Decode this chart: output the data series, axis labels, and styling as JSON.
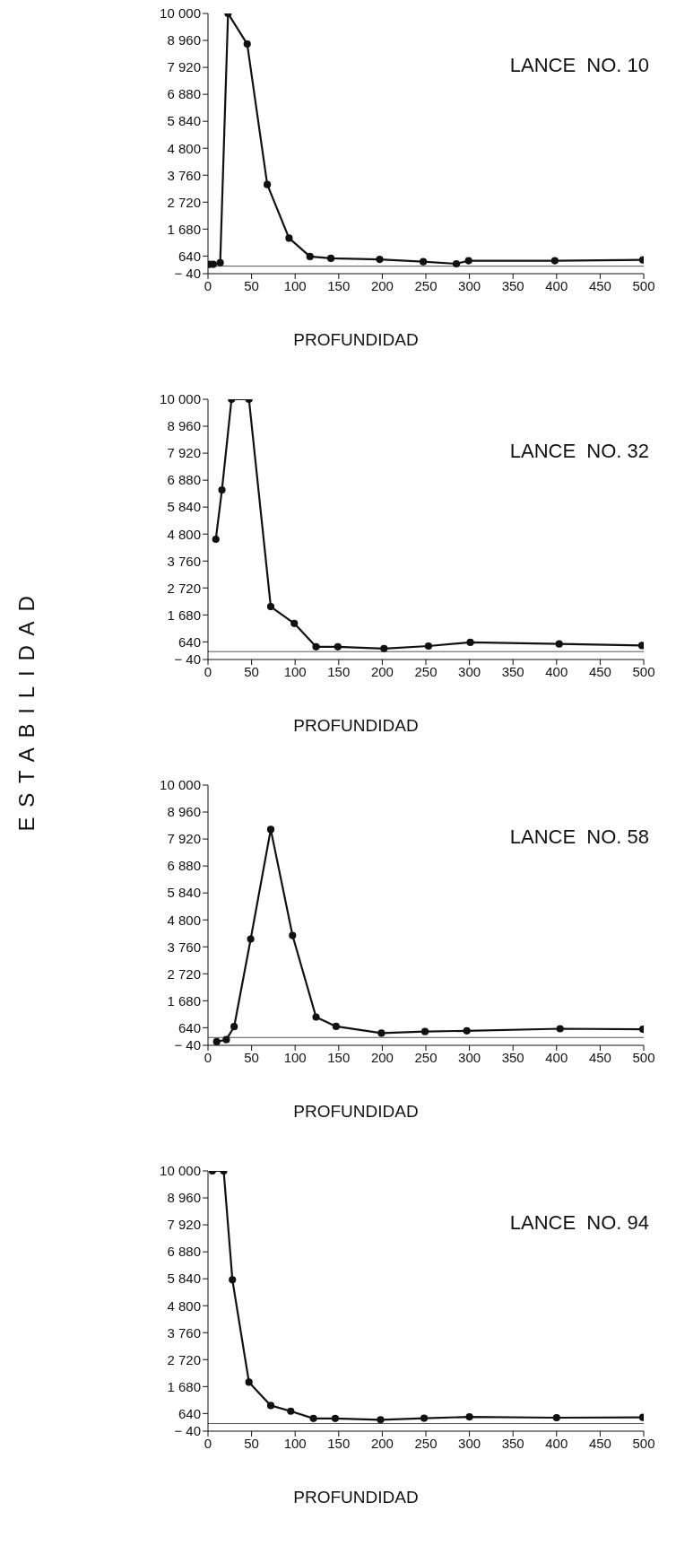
{
  "chart_data": [
    {
      "type": "line",
      "title": "LANCE  NO. 10",
      "xlabel": "PROFUNDIDAD",
      "color": "#111111",
      "marker": "circle",
      "xlim": [
        0,
        500
      ],
      "xticks": [
        0,
        50,
        100,
        150,
        200,
        250,
        300,
        350,
        400,
        450,
        500
      ],
      "ylim": [
        -40,
        10000
      ],
      "yticks": [
        {
          "value": -40,
          "label": "− 40"
        },
        {
          "value": 640,
          "label": "640"
        },
        {
          "value": 1680,
          "label": "1 680"
        },
        {
          "value": 2720,
          "label": "2 720"
        },
        {
          "value": 3760,
          "label": "3 760"
        },
        {
          "value": 4800,
          "label": "4 800"
        },
        {
          "value": 5840,
          "label": "5 840"
        },
        {
          "value": 6880,
          "label": "6 880"
        },
        {
          "value": 7920,
          "label": "7 920"
        },
        {
          "value": 8960,
          "label": "8 960"
        },
        {
          "value": 10000,
          "label": "10 000"
        }
      ],
      "x": [
        2,
        6,
        14,
        23,
        45,
        68,
        93,
        117,
        141,
        197,
        247,
        285,
        299,
        398,
        499
      ],
      "values": [
        320,
        320,
        380,
        10000,
        8820,
        3400,
        1330,
        620,
        550,
        510,
        420,
        340,
        460,
        460,
        490
      ],
      "ref_lines": [
        {
          "axis": "y",
          "value": 250,
          "color": "#555555"
        }
      ]
    },
    {
      "type": "line",
      "title": "LANCE  NO. 32",
      "xlabel": "PROFUNDIDAD",
      "ylabel": "ESTABILIDAD",
      "color": "#111111",
      "marker": "circle",
      "xlim": [
        0,
        500
      ],
      "xticks": [
        0,
        50,
        100,
        150,
        200,
        250,
        300,
        350,
        400,
        450,
        500
      ],
      "ylim": [
        -40,
        10000
      ],
      "yticks": [
        {
          "value": -40,
          "label": "− 40"
        },
        {
          "value": 640,
          "label": "640"
        },
        {
          "value": 1680,
          "label": "1 680"
        },
        {
          "value": 2720,
          "label": "2 720"
        },
        {
          "value": 3760,
          "label": "3 760"
        },
        {
          "value": 4800,
          "label": "4 800"
        },
        {
          "value": 5840,
          "label": "5 840"
        },
        {
          "value": 6880,
          "label": "6 880"
        },
        {
          "value": 7920,
          "label": "7 920"
        },
        {
          "value": 8960,
          "label": "8 960"
        },
        {
          "value": 10000,
          "label": "10 000"
        }
      ],
      "x": [
        9,
        16,
        27,
        47,
        72,
        99,
        124,
        149,
        202,
        253,
        301,
        403,
        498
      ],
      "values": [
        4600,
        6500,
        10000,
        10000,
        2000,
        1350,
        450,
        450,
        380,
        480,
        620,
        560,
        500
      ],
      "ref_lines": [
        {
          "axis": "y",
          "value": 265,
          "color": "#555555"
        }
      ]
    },
    {
      "type": "line",
      "title": "LANCE  NO. 58",
      "xlabel": "PROFUNDIDAD",
      "color": "#111111",
      "marker": "circle",
      "xlim": [
        0,
        500
      ],
      "xticks": [
        0,
        50,
        100,
        150,
        200,
        250,
        300,
        350,
        400,
        450,
        500
      ],
      "ylim": [
        -40,
        10000
      ],
      "yticks": [
        {
          "value": -40,
          "label": "− 40"
        },
        {
          "value": 640,
          "label": "640"
        },
        {
          "value": 1680,
          "label": "1 680"
        },
        {
          "value": 2720,
          "label": "2 720"
        },
        {
          "value": 3760,
          "label": "3 760"
        },
        {
          "value": 4800,
          "label": "4 800"
        },
        {
          "value": 5840,
          "label": "5 840"
        },
        {
          "value": 6880,
          "label": "6 880"
        },
        {
          "value": 7920,
          "label": "7 920"
        },
        {
          "value": 8960,
          "label": "8 960"
        },
        {
          "value": 10000,
          "label": "10 000"
        }
      ],
      "x": [
        10,
        21,
        30,
        49,
        72,
        97,
        124,
        147,
        199,
        249,
        297,
        404,
        499
      ],
      "values": [
        100,
        180,
        680,
        4060,
        8290,
        4200,
        1050,
        690,
        430,
        490,
        520,
        600,
        580
      ],
      "ref_lines": [
        {
          "axis": "y",
          "value": 262,
          "color": "#555555"
        }
      ]
    },
    {
      "type": "line",
      "title": "LANCE  NO. 94",
      "xlabel": "PROFUNDIDAD",
      "color": "#111111",
      "marker": "circle",
      "xlim": [
        0,
        500
      ],
      "xticks": [
        0,
        50,
        100,
        150,
        200,
        250,
        300,
        350,
        400,
        450,
        500
      ],
      "ylim": [
        -40,
        10000
      ],
      "yticks": [
        {
          "value": -40,
          "label": "− 40"
        },
        {
          "value": 640,
          "label": "640"
        },
        {
          "value": 1680,
          "label": "1 680"
        },
        {
          "value": 2720,
          "label": "2 720"
        },
        {
          "value": 3760,
          "label": "3 760"
        },
        {
          "value": 4800,
          "label": "4 800"
        },
        {
          "value": 5840,
          "label": "5 840"
        },
        {
          "value": 6880,
          "label": "6 880"
        },
        {
          "value": 7920,
          "label": "7 920"
        },
        {
          "value": 8960,
          "label": "8 960"
        },
        {
          "value": 10000,
          "label": "10 000"
        }
      ],
      "x": [
        5,
        18,
        28,
        47,
        72,
        95,
        121,
        146,
        198,
        248,
        300,
        400,
        499
      ],
      "values": [
        10000,
        10000,
        5800,
        1850,
        950,
        730,
        450,
        450,
        400,
        460,
        510,
        480,
        490
      ],
      "ref_lines": [
        {
          "axis": "y",
          "value": 253,
          "color": "#555555"
        }
      ]
    }
  ]
}
